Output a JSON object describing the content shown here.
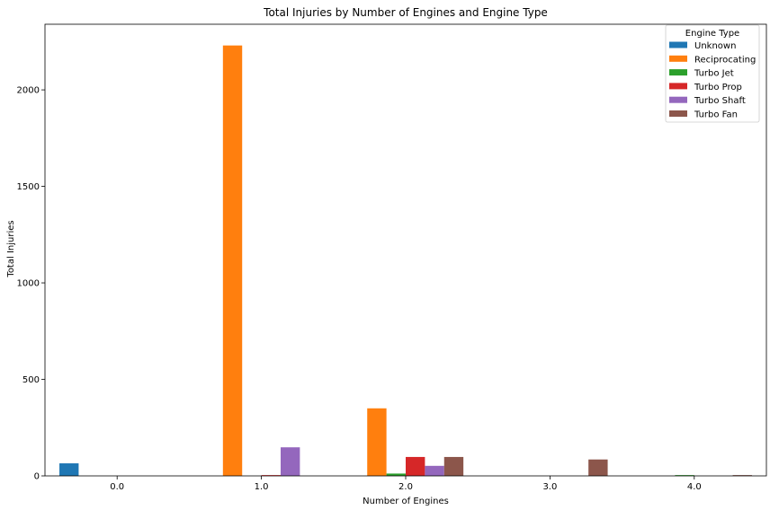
{
  "chart_data": {
    "type": "bar",
    "title": "Total Injuries by Number of Engines and Engine Type",
    "xlabel": "Number of Engines",
    "ylabel": "Total Injuries",
    "categories": [
      "0.0",
      "1.0",
      "2.0",
      "3.0",
      "4.0"
    ],
    "ylim": [
      0,
      2340
    ],
    "yticks": [
      0,
      500,
      1000,
      1500,
      2000
    ],
    "legend": {
      "title": "Engine Type",
      "placement": "top-right"
    },
    "series": [
      {
        "name": "Unknown",
        "color": "#1f77b4",
        "values": [
          65,
          0,
          0,
          0,
          0
        ]
      },
      {
        "name": "Reciprocating",
        "color": "#ff7f0e",
        "values": [
          0,
          2230,
          350,
          0,
          0
        ]
      },
      {
        "name": "Turbo Jet",
        "color": "#2ca02c",
        "values": [
          0,
          0,
          12,
          0,
          4
        ]
      },
      {
        "name": "Turbo Prop",
        "color": "#d62728",
        "values": [
          0,
          4,
          98,
          0,
          0
        ]
      },
      {
        "name": "Turbo Shaft",
        "color": "#9467bd",
        "values": [
          0,
          148,
          52,
          0,
          0
        ]
      },
      {
        "name": "Turbo Fan",
        "color": "#8c564b",
        "values": [
          0,
          0,
          98,
          85,
          4
        ]
      }
    ]
  }
}
